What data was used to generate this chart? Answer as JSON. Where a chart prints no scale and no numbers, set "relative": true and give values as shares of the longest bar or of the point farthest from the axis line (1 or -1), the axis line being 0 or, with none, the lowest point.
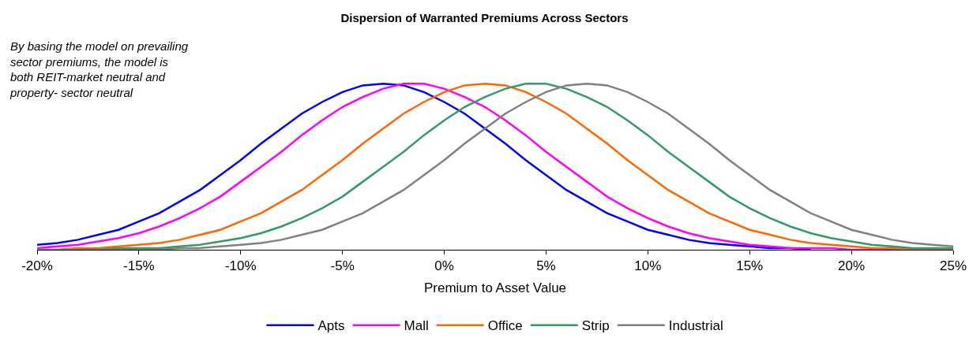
{
  "chart_data": {
    "type": "line",
    "title": "Dispersion of Warranted Premiums Across Sectors",
    "xlabel": "Premium to Asset Value",
    "annotations": [
      "By basing the model on prevailing sector premiums, the model is both REIT-market neutral and property- sector neutral"
    ],
    "relative": true,
    "legend": "bottom",
    "grid": false,
    "marker": "none",
    "line_style": "solid",
    "x": [
      -20,
      -19,
      -18,
      -17,
      -16,
      -15,
      -14,
      -13,
      -12,
      -11,
      -10,
      -9,
      -8,
      -7,
      -6,
      -5,
      -4,
      -3,
      -2,
      -1,
      0,
      1,
      2,
      3,
      4,
      5,
      6,
      7,
      8,
      9,
      10,
      11,
      12,
      13,
      14,
      15,
      16,
      17,
      18,
      19,
      20,
      21,
      22,
      23,
      24,
      25
    ],
    "xlim": [
      -20,
      25
    ],
    "xticks": [
      {
        "value": -20,
        "label": "-20%"
      },
      {
        "value": -15,
        "label": "-15%"
      },
      {
        "value": -10,
        "label": "-10%"
      },
      {
        "value": -5,
        "label": "-5%"
      },
      {
        "value": 0,
        "label": "0%"
      },
      {
        "value": 5,
        "label": "5%"
      },
      {
        "value": 10,
        "label": "10%"
      },
      {
        "value": 15,
        "label": "15%"
      },
      {
        "value": 20,
        "label": "20%"
      },
      {
        "value": 25,
        "label": "25%"
      }
    ],
    "series": [
      {
        "name": "Apts",
        "color": "#0000ff",
        "values": [
          0.03,
          0.04,
          0.06,
          0.09,
          0.12,
          0.17,
          0.22,
          0.29,
          0.36,
          0.45,
          0.54,
          0.64,
          0.73,
          0.82,
          0.89,
          0.95,
          0.99,
          1,
          0.99,
          0.95,
          0.89,
          0.82,
          0.73,
          0.64,
          0.54,
          0.45,
          0.36,
          0.29,
          0.22,
          0.17,
          0.12,
          0.09,
          0.06,
          0.04,
          0.03,
          0.02,
          0.01,
          0.01,
          0,
          null,
          null,
          null,
          null,
          null,
          null,
          null
        ]
      },
      {
        "name": "Mall",
        "color": "#ff00ff",
        "values": [
          0.01,
          0.02,
          0.03,
          0.05,
          0.07,
          0.1,
          0.14,
          0.19,
          0.25,
          0.32,
          0.41,
          0.5,
          0.59,
          0.69,
          0.78,
          0.86,
          0.92,
          0.97,
          1,
          1,
          0.97,
          0.92,
          0.86,
          0.78,
          0.69,
          0.59,
          0.5,
          0.41,
          0.32,
          0.25,
          0.19,
          0.14,
          0.1,
          0.07,
          0.05,
          0.03,
          0.02,
          0.01,
          0.01,
          0.01,
          0,
          0,
          0,
          0,
          null,
          null
        ]
      },
      {
        "name": "Office",
        "color": "#ff6600",
        "values": [
          0,
          0,
          0.01,
          0.01,
          0.02,
          0.03,
          0.04,
          0.06,
          0.09,
          0.12,
          0.17,
          0.22,
          0.29,
          0.36,
          0.45,
          0.54,
          0.64,
          0.73,
          0.82,
          0.89,
          0.95,
          0.99,
          1,
          0.99,
          0.95,
          0.89,
          0.82,
          0.73,
          0.64,
          0.54,
          0.45,
          0.36,
          0.29,
          0.22,
          0.17,
          0.12,
          0.09,
          0.06,
          0.04,
          0.03,
          0.02,
          0.01,
          0.01,
          0,
          0,
          0
        ]
      },
      {
        "name": "Strip",
        "color": "#339966",
        "values": [
          null,
          null,
          0,
          0,
          0.01,
          0.01,
          0.01,
          0.02,
          0.03,
          0.05,
          0.07,
          0.1,
          0.14,
          0.19,
          0.25,
          0.32,
          0.41,
          0.5,
          0.59,
          0.69,
          0.78,
          0.86,
          0.92,
          0.97,
          1,
          1,
          0.97,
          0.92,
          0.86,
          0.78,
          0.69,
          0.59,
          0.5,
          0.41,
          0.32,
          0.25,
          0.19,
          0.14,
          0.1,
          0.07,
          0.05,
          0.03,
          0.02,
          0.01,
          0.01,
          0.01
        ]
      },
      {
        "name": "Industrial",
        "color": "#808080",
        "values": [
          0,
          0,
          0,
          0,
          0,
          0,
          0,
          0.01,
          0.01,
          0.02,
          0.03,
          0.04,
          0.06,
          0.09,
          0.12,
          0.17,
          0.22,
          0.29,
          0.36,
          0.45,
          0.54,
          0.64,
          0.73,
          0.82,
          0.89,
          0.95,
          0.99,
          1,
          0.99,
          0.95,
          0.89,
          0.82,
          0.73,
          0.64,
          0.54,
          0.45,
          0.36,
          0.29,
          0.22,
          0.17,
          0.12,
          0.09,
          0.06,
          0.04,
          0.03,
          0.02
        ]
      }
    ]
  }
}
